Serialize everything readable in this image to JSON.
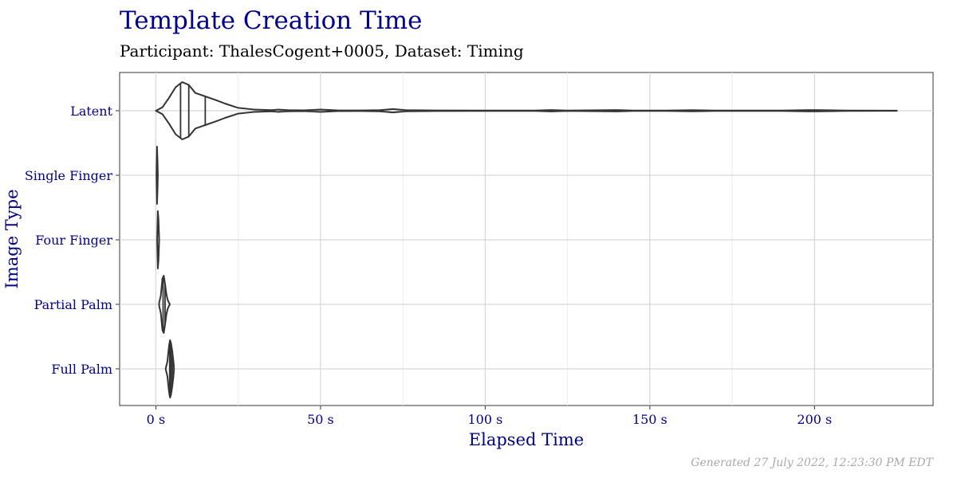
{
  "chart_data": {
    "type": "violin",
    "title": "Template Creation Time",
    "subtitle": "Participant: ThalesCogent+0005, Dataset: Timing",
    "xlabel": "Elapsed Time",
    "ylabel": "Image Type",
    "caption": "Generated 27 July 2022, 12:23:30 PM EDT",
    "xlim": [
      -11,
      236
    ],
    "x_ticks": [
      0,
      50,
      100,
      150,
      200
    ],
    "x_tick_labels": [
      "0 s",
      "50 s",
      "100 s",
      "150 s",
      "200 s"
    ],
    "grid": true,
    "categories": [
      "Latent",
      "Single Finger",
      "Four Finger",
      "Partial Palm",
      "Full Palm"
    ],
    "series": [
      {
        "category": "Latent",
        "min": 0,
        "max": 225,
        "quantiles": [
          7.5,
          10,
          15
        ],
        "density": [
          [
            0,
            0
          ],
          [
            2,
            0.12
          ],
          [
            4,
            0.45
          ],
          [
            6,
            0.82
          ],
          [
            8,
            1.0
          ],
          [
            10,
            0.9
          ],
          [
            12,
            0.62
          ],
          [
            15,
            0.5
          ],
          [
            18,
            0.38
          ],
          [
            21,
            0.25
          ],
          [
            25,
            0.1
          ],
          [
            30,
            0.04
          ],
          [
            35,
            0.02
          ],
          [
            37,
            0.04
          ],
          [
            40,
            0.02
          ],
          [
            45,
            0.015
          ],
          [
            50,
            0.04
          ],
          [
            55,
            0.015
          ],
          [
            62,
            0.01
          ],
          [
            68,
            0.02
          ],
          [
            72,
            0.06
          ],
          [
            76,
            0.02
          ],
          [
            85,
            0.01
          ],
          [
            100,
            0.008
          ],
          [
            115,
            0.006
          ],
          [
            120,
            0.025
          ],
          [
            125,
            0.006
          ],
          [
            140,
            0.025
          ],
          [
            145,
            0.006
          ],
          [
            155,
            0.008
          ],
          [
            163,
            0.02
          ],
          [
            170,
            0.006
          ],
          [
            190,
            0.006
          ],
          [
            200,
            0.025
          ],
          [
            210,
            0.006
          ],
          [
            225,
            0.004
          ]
        ]
      },
      {
        "category": "Single Finger",
        "min": 0.2,
        "max": 0.6,
        "quantiles": [],
        "density": [
          [
            0.2,
            0.02
          ],
          [
            0.35,
            1.0
          ],
          [
            0.5,
            0.5
          ],
          [
            0.6,
            0.02
          ]
        ]
      },
      {
        "category": "Four Finger",
        "min": 0.4,
        "max": 1.0,
        "quantiles": [],
        "density": [
          [
            0.4,
            0.02
          ],
          [
            0.6,
            1.0
          ],
          [
            0.8,
            0.7
          ],
          [
            1.0,
            0.02
          ]
        ]
      },
      {
        "category": "Partial Palm",
        "min": 1.0,
        "max": 4.2,
        "quantiles": [
          2.2,
          2.8
        ],
        "density": [
          [
            1.0,
            0.05
          ],
          [
            1.5,
            0.3
          ],
          [
            2.0,
            0.9
          ],
          [
            2.4,
            1.0
          ],
          [
            2.8,
            0.7
          ],
          [
            3.2,
            0.35
          ],
          [
            3.6,
            0.15
          ],
          [
            4.0,
            0.05
          ],
          [
            4.2,
            0.02
          ]
        ]
      },
      {
        "category": "Full Palm",
        "min": 3.0,
        "max": 5.5,
        "quantiles": [
          4.2,
          4.6,
          5.0
        ],
        "density": [
          [
            3.0,
            0.02
          ],
          [
            3.5,
            0.25
          ],
          [
            4.0,
            0.8
          ],
          [
            4.3,
            1.0
          ],
          [
            4.6,
            0.9
          ],
          [
            5.0,
            0.6
          ],
          [
            5.3,
            0.3
          ],
          [
            5.5,
            0.05
          ]
        ]
      }
    ]
  }
}
